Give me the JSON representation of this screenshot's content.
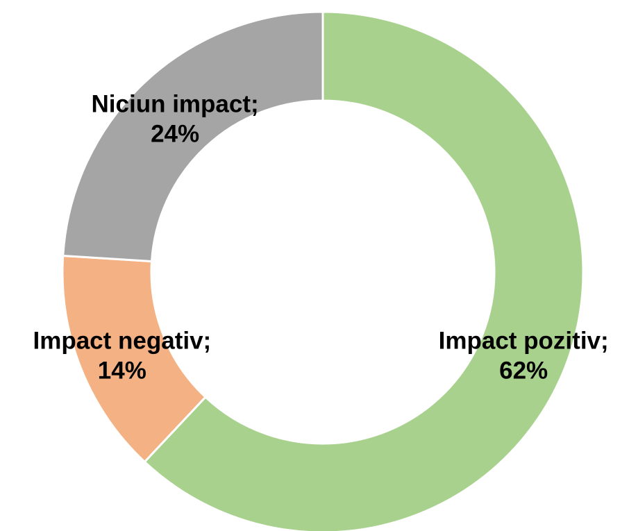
{
  "chart_data": {
    "type": "donut",
    "categories": [
      "Impact pozitiv;",
      "Impact negativ;",
      "Niciun impact;"
    ],
    "values": [
      62,
      14,
      24
    ],
    "value_labels": [
      "62%",
      "14%",
      "24%"
    ],
    "colors": [
      "#a9d18e",
      "#f4b183",
      "#a5a5a5"
    ]
  }
}
